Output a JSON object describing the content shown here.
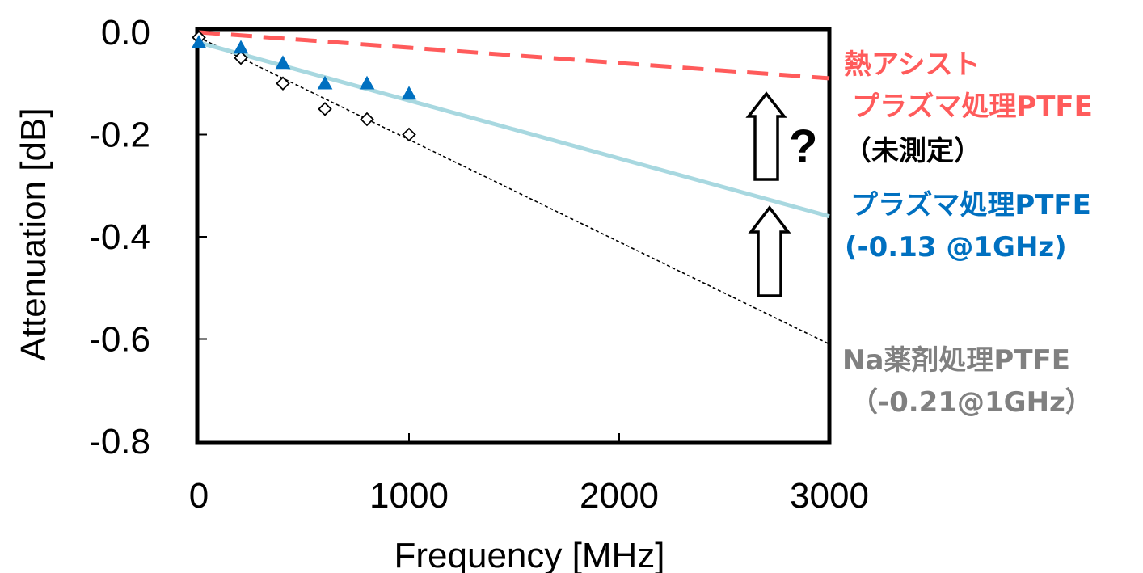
{
  "chart_data": {
    "type": "scatter",
    "xlabel": "Frequency [MHz]",
    "ylabel": "Attenuation [dB]",
    "xlim": [
      0,
      3000
    ],
    "ylim": [
      -0.8,
      0.0
    ],
    "x_ticks": [
      "0",
      "1000",
      "2000",
      "3000"
    ],
    "y_ticks": [
      "0.0",
      "-0.2",
      "-0.4",
      "-0.6",
      "-0.8"
    ],
    "grid": false,
    "series": [
      {
        "name": "Na薬剤処理PTFE",
        "marker": "diamond",
        "color": "#000000",
        "x": [
          0,
          200,
          400,
          600,
          800,
          1000
        ],
        "y": [
          -0.01,
          -0.05,
          -0.1,
          -0.15,
          -0.17,
          -0.2
        ],
        "trend": {
          "x": [
            0,
            3000
          ],
          "y": [
            -0.01,
            -0.61
          ],
          "style": "dotted",
          "color": "#000000"
        }
      },
      {
        "name": "プラズマ処理PTFE",
        "marker": "triangle",
        "color": "#0070c0",
        "x": [
          0,
          200,
          400,
          600,
          800,
          1000
        ],
        "y": [
          -0.02,
          -0.03,
          -0.06,
          -0.1,
          -0.1,
          -0.12
        ],
        "trend": {
          "x": [
            0,
            3000
          ],
          "y": [
            -0.02,
            -0.36
          ],
          "style": "solid",
          "color": "#a8d8e0"
        }
      },
      {
        "name": "熱アシストプラズマ処理PTFE",
        "marker": "none",
        "color": "#ff5b5b",
        "trend": {
          "x": [
            0,
            3000
          ],
          "y": [
            0.0,
            -0.09
          ],
          "style": "dashed",
          "color": "#ff5b5b"
        }
      }
    ],
    "annotations": {
      "thermal_line1": "熱アシスト",
      "thermal_line2": "プラズマ処理PTFE",
      "thermal_note": "（未測定）",
      "question": "?",
      "plasma_line1": "プラズマ処理PTFE",
      "plasma_line2": "(-0.13 @1GHz)",
      "na_line1": "Na薬剤処理PTFE",
      "na_line2": "（-0.21@1GHz）"
    },
    "colors": {
      "thermal": "#ff5b5b",
      "plasma": "#0070c0",
      "plasma_trend": "#a8d8e0",
      "na": "#808080"
    }
  }
}
